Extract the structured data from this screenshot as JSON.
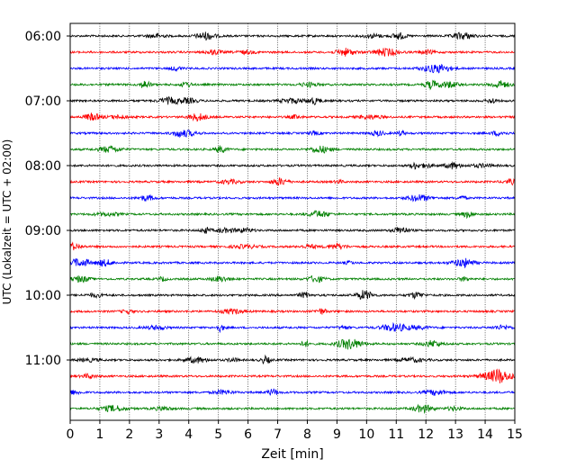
{
  "chart_data": {
    "type": "line",
    "title": "",
    "xlabel": "Zeit  [min]",
    "ylabel": "UTC (Lokalzeit = UTC + 02:00)",
    "xlim": [
      0,
      15
    ],
    "x_ticks": [
      "0",
      "1",
      "2",
      "3",
      "4",
      "5",
      "6",
      "7",
      "8",
      "9",
      "10",
      "11",
      "12",
      "13",
      "14",
      "15"
    ],
    "y_tick_labels": [
      "06:00",
      "07:00",
      "08:00",
      "09:00",
      "10:00",
      "11:00"
    ],
    "grid": "vertical dotted lines at each minute",
    "trace_interval_min": 15,
    "trace_start": "06:00",
    "color_cycle": [
      "#000000",
      "#ff0000",
      "#0000ff",
      "#008000"
    ],
    "traces": [
      {
        "start": "06:00",
        "color": "#000000"
      },
      {
        "start": "06:15",
        "color": "#ff0000"
      },
      {
        "start": "06:30",
        "color": "#0000ff"
      },
      {
        "start": "06:45",
        "color": "#008000"
      },
      {
        "start": "07:00",
        "color": "#000000"
      },
      {
        "start": "07:15",
        "color": "#ff0000"
      },
      {
        "start": "07:30",
        "color": "#0000ff"
      },
      {
        "start": "07:45",
        "color": "#008000"
      },
      {
        "start": "08:00",
        "color": "#000000"
      },
      {
        "start": "08:15",
        "color": "#ff0000"
      },
      {
        "start": "08:30",
        "color": "#0000ff"
      },
      {
        "start": "08:45",
        "color": "#008000"
      },
      {
        "start": "09:00",
        "color": "#000000"
      },
      {
        "start": "09:15",
        "color": "#ff0000"
      },
      {
        "start": "09:30",
        "color": "#0000ff"
      },
      {
        "start": "09:45",
        "color": "#008000"
      },
      {
        "start": "10:00",
        "color": "#000000"
      },
      {
        "start": "10:15",
        "color": "#ff0000"
      },
      {
        "start": "10:30",
        "color": "#0000ff"
      },
      {
        "start": "10:45",
        "color": "#008000"
      },
      {
        "start": "11:00",
        "color": "#000000"
      },
      {
        "start": "11:15",
        "color": "#ff0000"
      },
      {
        "start": "11:30",
        "color": "#0000ff"
      },
      {
        "start": "11:45",
        "color": "#008000"
      }
    ]
  }
}
